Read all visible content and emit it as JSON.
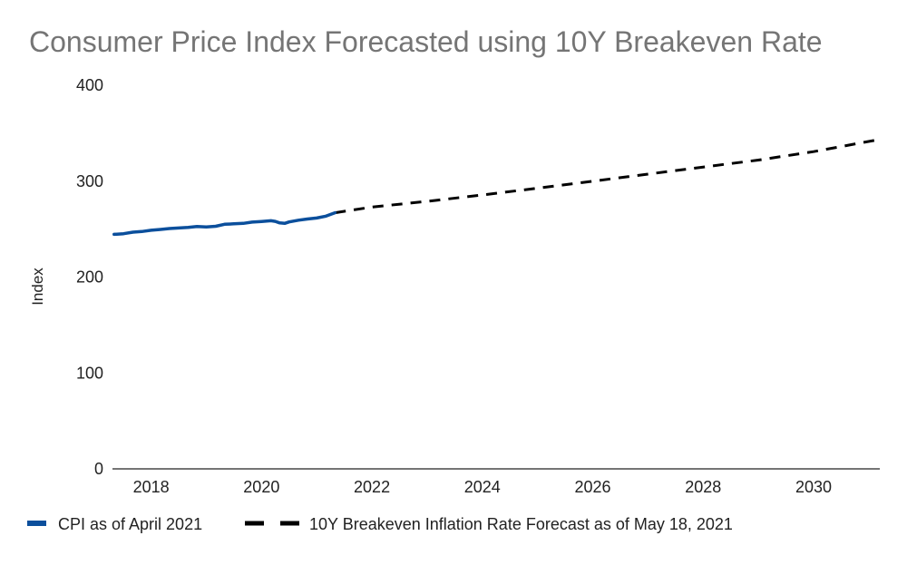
{
  "chart_data": {
    "type": "line",
    "title": "Consumer Price Index Forecasted using 10Y Breakeven Rate",
    "xlabel": "",
    "ylabel": "Index",
    "xlim": [
      2017.3,
      2031.2
    ],
    "ylim": [
      0,
      400
    ],
    "x_ticks": [
      2018,
      2020,
      2022,
      2024,
      2026,
      2028,
      2030
    ],
    "y_ticks": [
      0,
      100,
      200,
      300,
      400
    ],
    "grid": false,
    "legend_position": "bottom-left",
    "series": [
      {
        "name": "CPI as of April 2021",
        "color": "#0b4f9c",
        "style": "solid",
        "x": [
          2017.33,
          2017.5,
          2017.67,
          2017.83,
          2018.0,
          2018.17,
          2018.33,
          2018.5,
          2018.67,
          2018.83,
          2019.0,
          2019.17,
          2019.33,
          2019.5,
          2019.67,
          2019.83,
          2020.0,
          2020.17,
          2020.25,
          2020.33,
          2020.42,
          2020.5,
          2020.67,
          2020.83,
          2021.0,
          2021.17,
          2021.33
        ],
        "values": [
          244.5,
          245.2,
          246.8,
          247.5,
          248.8,
          249.6,
          250.6,
          251.2,
          251.8,
          252.8,
          252.3,
          253.0,
          255.0,
          255.5,
          256.0,
          257.3,
          258.0,
          258.7,
          258.1,
          256.5,
          256.0,
          257.5,
          259.3,
          260.5,
          261.6,
          263.5,
          267.0
        ]
      },
      {
        "name": "10Y Breakeven Inflation Rate Forecast as of May 18, 2021",
        "color": "#000000",
        "style": "dashed",
        "x": [
          2021.33,
          2022,
          2023,
          2024,
          2025,
          2026,
          2027,
          2028,
          2029,
          2030,
          2031.2
        ],
        "values": [
          267.0,
          273.0,
          279.0,
          285.6,
          292.7,
          300.0,
          307.3,
          314.7,
          322.0,
          330.8,
          343.5
        ]
      }
    ]
  }
}
